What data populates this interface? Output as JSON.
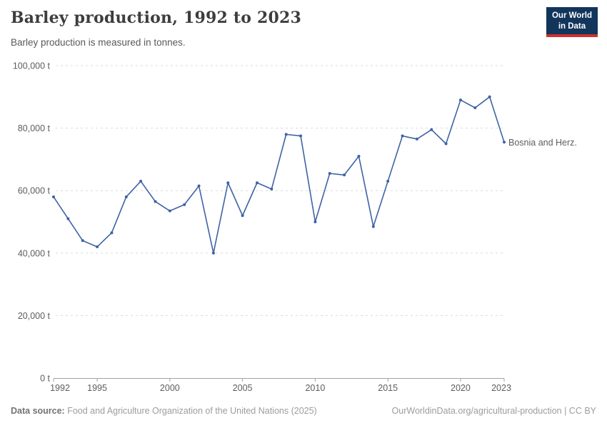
{
  "header": {
    "title": "Barley production, 1992 to 2023",
    "subtitle": "Barley production is measured in tonnes.",
    "logo_line1": "Our World",
    "logo_line2": "in Data"
  },
  "footer": {
    "source_label": "Data source:",
    "source_text": " Food and Agriculture Organization of the United Nations (2025)",
    "rights": "OurWorldinData.org/agricultural-production | CC BY"
  },
  "chart_data": {
    "type": "line",
    "title": "Barley production, 1992 to 2023",
    "subtitle": "Barley production is measured in tonnes.",
    "unit": "t",
    "xlabel": "",
    "ylabel": "",
    "xlim": [
      1992,
      2023
    ],
    "ylim": [
      0,
      100000
    ],
    "xticks": [
      1992,
      1995,
      2000,
      2005,
      2010,
      2015,
      2020,
      2023
    ],
    "yticks": [
      0,
      20000,
      40000,
      60000,
      80000,
      100000
    ],
    "ytick_labels": [
      "0 t",
      "20,000 t",
      "40,000 t",
      "60,000 t",
      "80,000 t",
      "100,000 t"
    ],
    "grid": "horizontal-dashed",
    "legend_position": "label-at-line-end",
    "point_markers": true,
    "series": [
      {
        "name": "Bosnia and Herz.",
        "color": "#3e63a5",
        "x": [
          1992,
          1993,
          1994,
          1995,
          1996,
          1997,
          1998,
          1999,
          2000,
          2001,
          2002,
          2003,
          2004,
          2005,
          2006,
          2007,
          2008,
          2009,
          2010,
          2011,
          2012,
          2013,
          2014,
          2015,
          2016,
          2017,
          2018,
          2019,
          2020,
          2021,
          2022,
          2023
        ],
        "values": [
          58000,
          51000,
          44000,
          42000,
          46500,
          58000,
          63000,
          56500,
          53500,
          55500,
          61500,
          40000,
          62500,
          52000,
          62500,
          60500,
          78000,
          77500,
          50000,
          65500,
          65000,
          71000,
          48500,
          63000,
          77500,
          76500,
          79500,
          75000,
          89000,
          86500,
          90000,
          75500
        ]
      }
    ],
    "colors": {
      "line": "#3e63a5",
      "gridline": "#dcdcdc",
      "axis": "#a1a1a1",
      "tick_text": "#5c5d61",
      "logo_bg": "#12355b",
      "logo_accent": "#cf2f2f"
    }
  }
}
